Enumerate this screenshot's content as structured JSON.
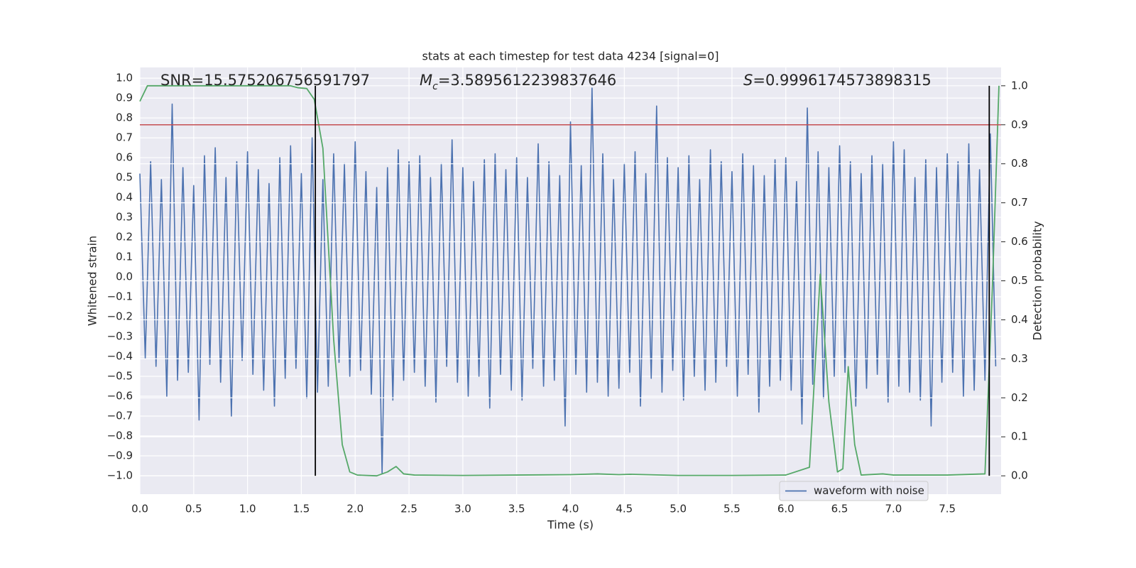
{
  "chart_data": {
    "type": "line",
    "title": "stats at each timestep for test data 4234 [signal=0]",
    "x_label": "Time (s)",
    "y_label": "Whitened strain",
    "y2_label": "Detection probability",
    "annotations": [
      {
        "text": "SNR=15.575206756591797"
      },
      {
        "italic": "M",
        "sub": "c",
        "text": "=3.5895612239837646"
      },
      {
        "italic": "S",
        "text": "=0.9996174573898315"
      }
    ],
    "xlim": [
      0,
      8
    ],
    "ylim": [
      -1.093,
      1.054
    ],
    "y2lim": [
      -0.047,
      1.047
    ],
    "xticks": [
      {
        "value": 0,
        "label": "0.0"
      },
      0.5,
      {
        "value": 1,
        "label": "1.0"
      },
      1.5,
      {
        "value": 2,
        "label": "2.0"
      },
      2.5,
      {
        "value": 3,
        "label": "3.0"
      },
      3.5,
      {
        "value": 4,
        "label": "4.0"
      },
      4.5,
      {
        "value": 5,
        "label": "5.0"
      },
      5.5,
      {
        "value": 6,
        "label": "6.0"
      },
      6.5,
      {
        "value": 7,
        "label": "7.0"
      },
      7.5
    ],
    "yticks": [
      {
        "value": -1,
        "label": "−1.0"
      },
      {
        "value": -0.9,
        "label": "−0.9"
      },
      {
        "value": -0.8,
        "label": "−0.8"
      },
      {
        "value": -0.7,
        "label": "−0.7"
      },
      {
        "value": -0.6,
        "label": "−0.6"
      },
      {
        "value": -0.5,
        "label": "−0.5"
      },
      {
        "value": -0.4,
        "label": "−0.4"
      },
      {
        "value": -0.3,
        "label": "−0.3"
      },
      {
        "value": -0.2,
        "label": "−0.2"
      },
      {
        "value": -0.1,
        "label": "−0.1"
      },
      {
        "value": 0,
        "label": "0.0"
      },
      0.1,
      0.2,
      0.3,
      0.4,
      0.5,
      0.6,
      0.7,
      0.8,
      0.9,
      {
        "value": 1,
        "label": "1.0"
      }
    ],
    "y2ticks": [
      {
        "value": 0,
        "label": "0.0"
      },
      0.1,
      0.2,
      0.3,
      0.4,
      0.5,
      0.6,
      0.7,
      0.8,
      0.9,
      {
        "value": 1,
        "label": "1.0"
      }
    ],
    "grid": true,
    "legend": "lower right",
    "series": [
      {
        "name": "waveform with noise",
        "color": "#4c72b0",
        "x": [
          0,
          0.05,
          0.1,
          0.15,
          0.2,
          0.25,
          0.3,
          0.35,
          0.4,
          0.45,
          0.5,
          0.55,
          0.6,
          0.65,
          0.7,
          0.75,
          0.8,
          0.85,
          0.9,
          0.95,
          1,
          1.05,
          1.1,
          1.15,
          1.2,
          1.25,
          1.3,
          1.35,
          1.4,
          1.45,
          1.5,
          1.55,
          1.6,
          1.65,
          1.7,
          1.75,
          1.8,
          1.85,
          1.9,
          1.95,
          2,
          2.05,
          2.1,
          2.15,
          2.2,
          2.25,
          2.3,
          2.35,
          2.4,
          2.45,
          2.5,
          2.55,
          2.6,
          2.65,
          2.7,
          2.75,
          2.8,
          2.85,
          2.9,
          2.95,
          3,
          3.05,
          3.1,
          3.15,
          3.2,
          3.25,
          3.3,
          3.35,
          3.4,
          3.45,
          3.5,
          3.55,
          3.6,
          3.65,
          3.7,
          3.75,
          3.8,
          3.85,
          3.9,
          3.95,
          4,
          4.05,
          4.1,
          4.15,
          4.2,
          4.25,
          4.3,
          4.35,
          4.4,
          4.45,
          4.5,
          4.55,
          4.6,
          4.65,
          4.7,
          4.75,
          4.8,
          4.85,
          4.9,
          4.95,
          5,
          5.05,
          5.1,
          5.15,
          5.2,
          5.25,
          5.3,
          5.35,
          5.4,
          5.45,
          5.5,
          5.55,
          5.6,
          5.65,
          5.7,
          5.75,
          5.8,
          5.85,
          5.9,
          5.95,
          6,
          6.05,
          6.1,
          6.15,
          6.2,
          6.25,
          6.3,
          6.35,
          6.4,
          6.45,
          6.5,
          6.55,
          6.6,
          6.65,
          6.7,
          6.75,
          6.8,
          6.85,
          6.9,
          6.95,
          7,
          7.05,
          7.1,
          7.15,
          7.2,
          7.25,
          7.3,
          7.35,
          7.4,
          7.45,
          7.5,
          7.55,
          7.6,
          7.65,
          7.7,
          7.75,
          7.8,
          7.85,
          7.9,
          7.95
        ],
        "values": [
          0.52,
          -0.41,
          0.58,
          -0.45,
          0.49,
          -0.6,
          0.87,
          -0.52,
          0.55,
          -0.48,
          0.46,
          -0.72,
          0.61,
          -0.44,
          0.65,
          -0.53,
          0.5,
          -0.7,
          0.58,
          -0.42,
          0.63,
          -0.49,
          0.54,
          -0.57,
          0.47,
          -0.65,
          0.6,
          -0.51,
          0.66,
          -0.46,
          0.52,
          -0.61,
          0.7,
          -0.58,
          0.49,
          -0.55,
          0.62,
          -0.43,
          0.57,
          -0.5,
          0.68,
          -0.47,
          0.53,
          -0.59,
          0.45,
          -0.99,
          0.55,
          -0.62,
          0.64,
          -0.52,
          0.58,
          -0.48,
          0.61,
          -0.55,
          0.5,
          -0.63,
          0.57,
          -0.45,
          0.69,
          -0.53,
          0.55,
          -0.6,
          0.48,
          -0.5,
          0.59,
          -0.66,
          0.62,
          -0.49,
          0.54,
          -0.57,
          0.6,
          -0.62,
          0.5,
          -0.46,
          0.67,
          -0.55,
          0.58,
          -0.52,
          0.51,
          -0.75,
          0.78,
          -0.49,
          0.56,
          -0.58,
          0.95,
          -0.53,
          0.62,
          -0.6,
          0.49,
          -0.56,
          0.57,
          -0.48,
          0.63,
          -0.65,
          0.52,
          -0.51,
          0.86,
          -0.58,
          0.6,
          -0.47,
          0.55,
          -0.62,
          0.61,
          -0.5,
          0.49,
          -0.57,
          0.64,
          -0.53,
          0.58,
          -0.45,
          0.53,
          -0.6,
          0.62,
          -0.49,
          0.56,
          -0.68,
          0.51,
          -0.55,
          0.59,
          -0.52,
          0.6,
          -0.57,
          0.48,
          -0.74,
          0.85,
          -0.54,
          0.63,
          -0.61,
          0.55,
          -0.5,
          0.66,
          -0.48,
          0.58,
          -0.65,
          0.52,
          -0.56,
          0.61,
          -0.49,
          0.57,
          -0.63,
          0.68,
          -0.55,
          0.64,
          -0.58,
          0.5,
          -0.62,
          0.59,
          -0.75,
          0.55,
          -0.53,
          0.62,
          -0.48,
          0.58,
          -0.6,
          0.67,
          -0.57,
          0.54,
          -0.52,
          0.72,
          -0.45
        ]
      },
      {
        "color": "#55a868",
        "axis": "y2",
        "x": [
          0,
          0.07,
          0.5,
          1.0,
          1.4,
          1.47,
          1.55,
          1.62,
          1.7,
          1.8,
          1.88,
          1.95,
          2.02,
          2.2,
          2.3,
          2.38,
          2.45,
          2.55,
          3.0,
          3.5,
          4.0,
          4.25,
          4.45,
          4.55,
          5.0,
          5.5,
          6.0,
          6.22,
          6.32,
          6.4,
          6.48,
          6.53,
          6.58,
          6.64,
          6.7,
          6.9,
          7.0,
          7.5,
          7.85,
          7.92,
          7.98
        ],
        "values": [
          0.96,
          1.0,
          1.0,
          1.0,
          1.0,
          0.995,
          0.993,
          0.965,
          0.84,
          0.35,
          0.08,
          0.01,
          0.002,
          0.0,
          0.01,
          0.024,
          0.005,
          0.002,
          0.001,
          0.002,
          0.003,
          0.005,
          0.003,
          0.004,
          0.001,
          0.001,
          0.002,
          0.022,
          0.517,
          0.19,
          0.01,
          0.018,
          0.28,
          0.08,
          0.002,
          0.005,
          0.002,
          0.002,
          0.005,
          0.49,
          1.0
        ]
      }
    ],
    "threshold": {
      "value": 0.9,
      "axis": "y2",
      "color": "#c44e52"
    },
    "vlines": {
      "values": [
        1.63,
        7.89
      ],
      "color": "#000000"
    }
  }
}
